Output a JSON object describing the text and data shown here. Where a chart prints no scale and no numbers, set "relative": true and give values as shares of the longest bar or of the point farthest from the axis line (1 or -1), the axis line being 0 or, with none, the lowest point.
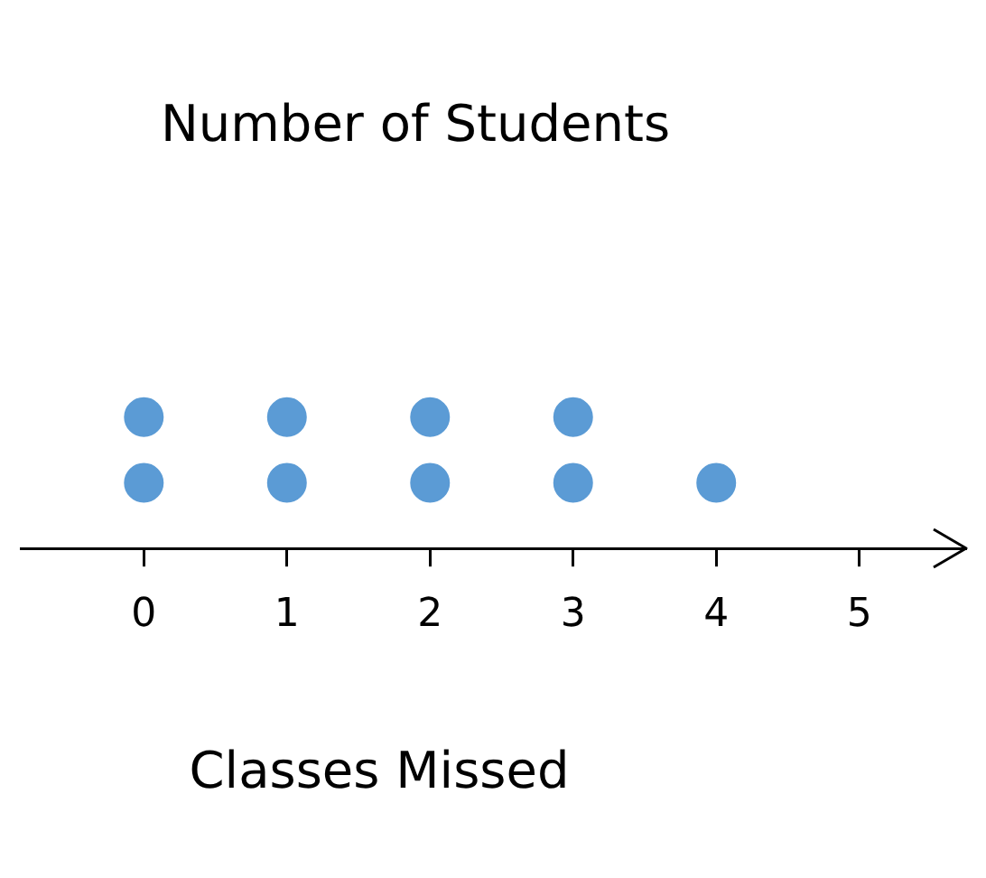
{
  "chart_data": {
    "type": "scatter",
    "title": "Number of Students",
    "xlabel": "Classes Missed",
    "x": [
      0,
      0,
      1,
      1,
      2,
      2,
      3,
      3,
      4
    ],
    "values": [
      0.5,
      1,
      0.5,
      1,
      0.5,
      1,
      0.5,
      1,
      0.5
    ],
    "relative": true,
    "color": "#5b9bd5",
    "marker": "circle",
    "xlim": [
      -0.86,
      5.74
    ],
    "xticks": [
      0,
      1,
      2,
      3,
      4,
      5
    ],
    "tick_labels": "x",
    "grid": false,
    "legend": false
  }
}
